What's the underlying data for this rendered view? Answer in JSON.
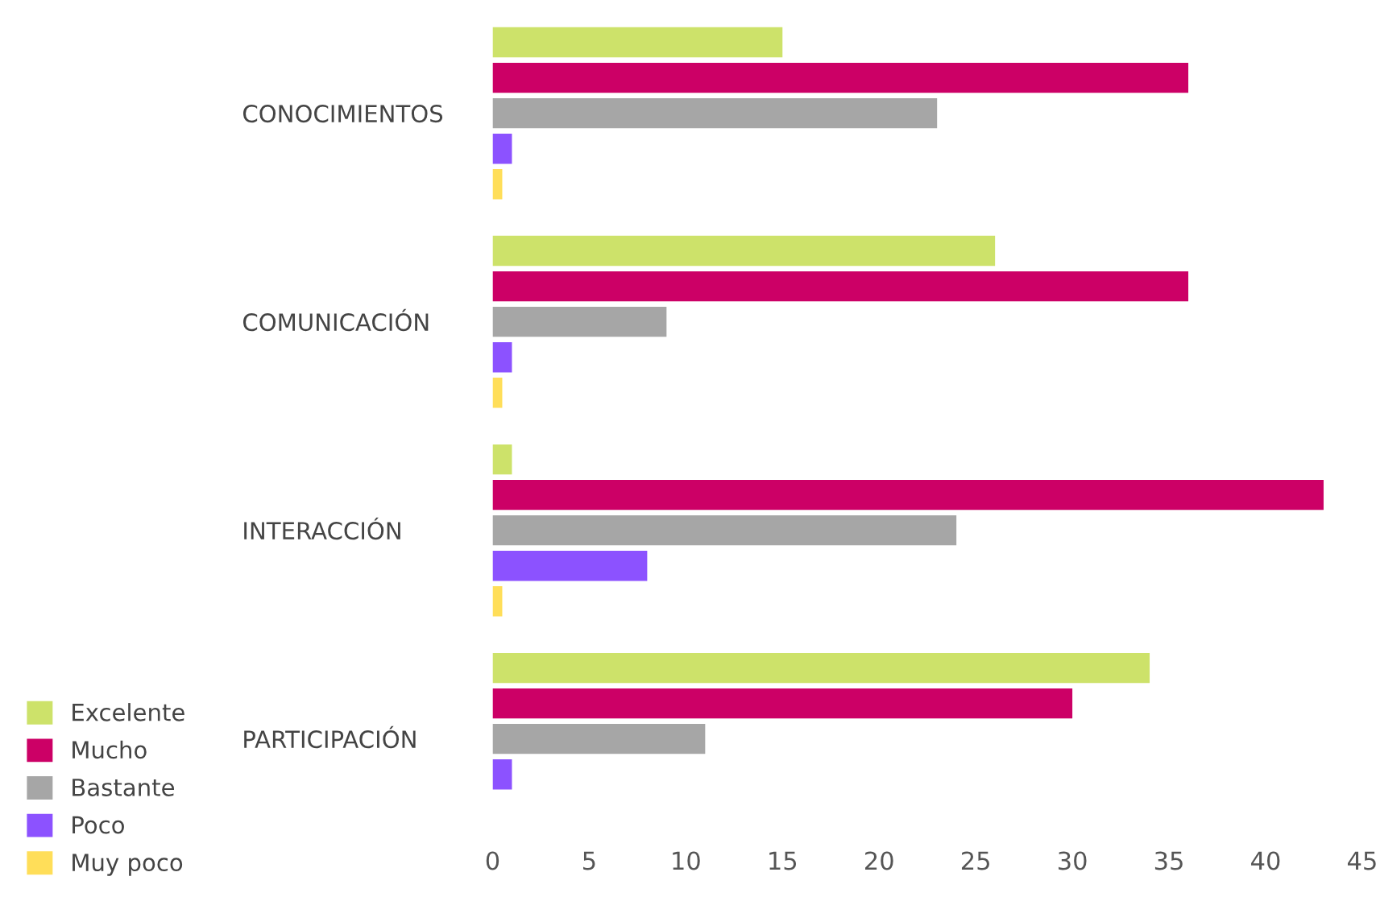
{
  "chart_data": {
    "type": "bar",
    "orientation": "horizontal",
    "categories": [
      "CONOCIMIENTOS",
      "COMUNICACIÓN",
      "INTERACCIÓN",
      "PARTICIPACIÓN"
    ],
    "series": [
      {
        "name": "Excelente",
        "color": "#cde26a",
        "values": [
          15,
          26,
          1,
          34
        ]
      },
      {
        "name": "Mucho",
        "color": "#cc0066",
        "values": [
          36,
          36,
          43,
          30
        ]
      },
      {
        "name": "Bastante",
        "color": "#a6a6a6",
        "values": [
          23,
          9,
          24,
          11
        ]
      },
      {
        "name": "Poco",
        "color": "#8c52ff",
        "values": [
          1,
          1,
          8,
          1
        ]
      },
      {
        "name": "Muy poco",
        "color": "#ffde59",
        "values": [
          0.5,
          0.5,
          0.5,
          null
        ]
      }
    ],
    "xlim": [
      0,
      45
    ],
    "xticks": [
      0,
      5,
      10,
      15,
      20,
      25,
      30,
      35,
      40,
      45
    ],
    "grid": false,
    "legend": "bottom left"
  }
}
